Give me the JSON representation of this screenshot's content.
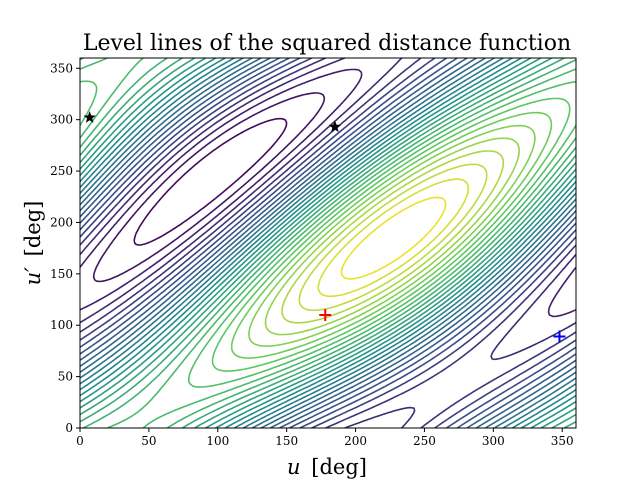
{
  "chart_data": {
    "type": "contour",
    "title": "Level lines of the squared distance function",
    "xlabel_var": "u",
    "xlabel_unit": "[deg]",
    "ylabel_var": "u′",
    "ylabel_unit": "[deg]",
    "xlim": [
      0,
      360
    ],
    "ylim": [
      0,
      360
    ],
    "xticks": [
      0,
      50,
      100,
      150,
      200,
      250,
      300,
      350
    ],
    "yticks": [
      0,
      50,
      100,
      150,
      200,
      250,
      300,
      350
    ],
    "grid": false,
    "colormap": [
      "#440154",
      "#3b528b",
      "#21918c",
      "#5ec962",
      "#fde725"
    ],
    "levels": 30,
    "markers": [
      {
        "type": "plus",
        "x": 178,
        "y": 110,
        "color": "#ff0000"
      },
      {
        "type": "plus",
        "x": 348,
        "y": 89,
        "color": "#0000ff"
      },
      {
        "type": "star",
        "x": 7,
        "y": 302,
        "color": "#000000"
      },
      {
        "type": "star",
        "x": 185,
        "y": 293,
        "color": "#000000"
      }
    ]
  }
}
